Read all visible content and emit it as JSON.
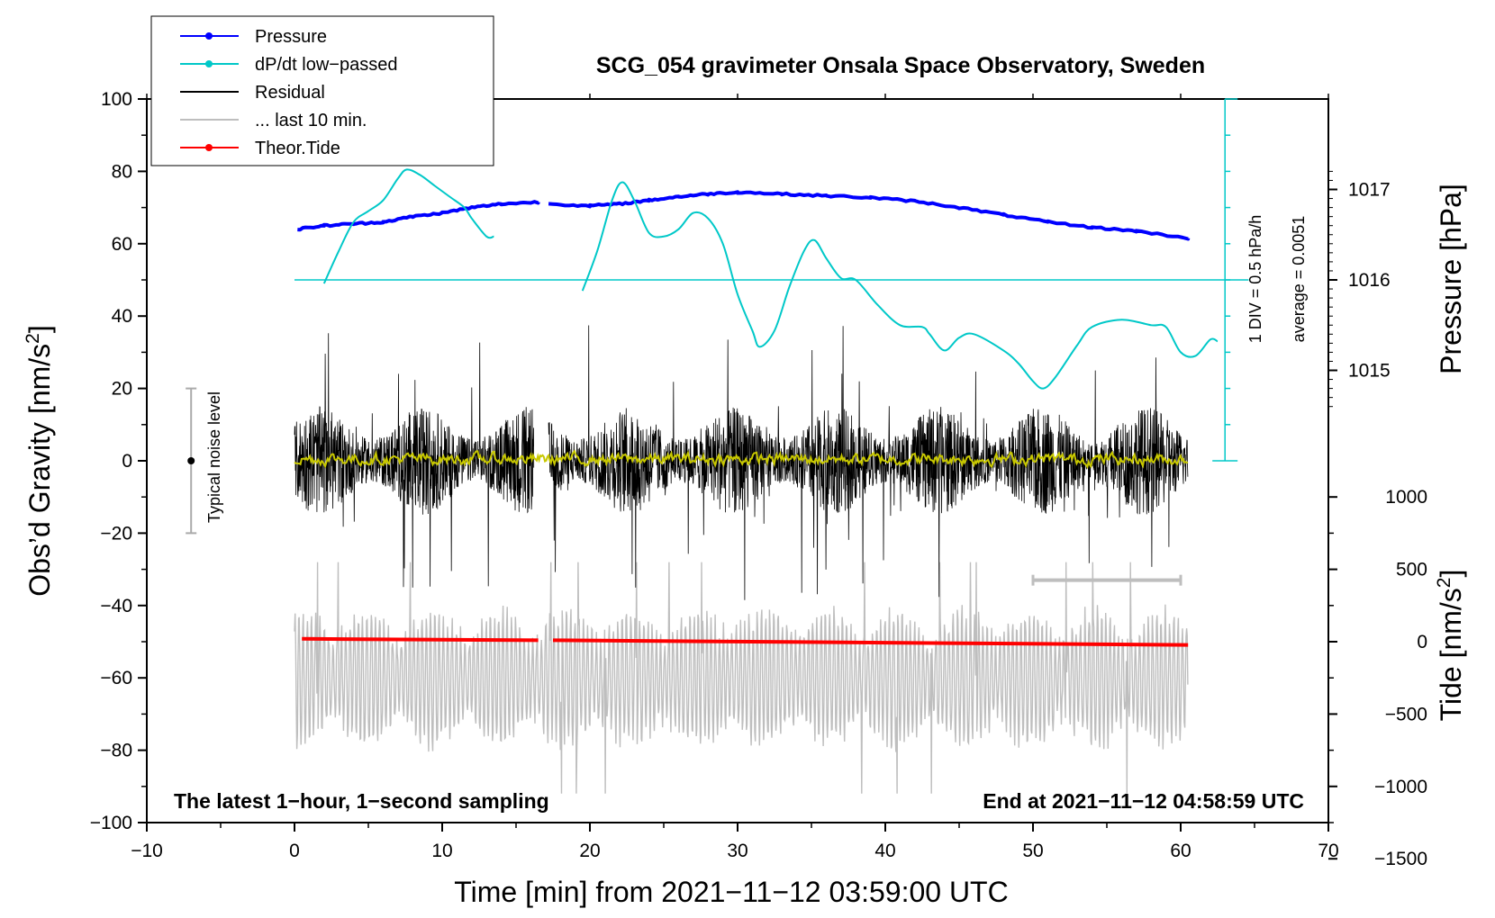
{
  "chart_data": {
    "type": "line",
    "title": "SCG_054 gravimeter Onsala Space Observatory, Sweden",
    "xlabel": "Time [min] from 2021−11−12 03:59:00 UTC",
    "ylabel": "Obs’d Gravity [nm/s",
    "ylabel_sup": "2",
    "ylabel_close": "]",
    "xlim": [
      -10,
      70
    ],
    "ylim": [
      -100,
      100
    ],
    "x_ticks": [
      -10,
      0,
      10,
      20,
      30,
      40,
      50,
      60,
      70
    ],
    "x_tick_labels": [
      "−10",
      "0",
      "10",
      "20",
      "30",
      "40",
      "50",
      "60",
      "70"
    ],
    "y_ticks": [
      -100,
      -80,
      -60,
      -40,
      -20,
      0,
      20,
      40,
      60,
      80,
      100
    ],
    "y_tick_labels": [
      "−100",
      "−80",
      "−60",
      "−40",
      "−20",
      "0",
      "20",
      "40",
      "60",
      "80",
      "100"
    ],
    "pressure_axis": {
      "label": "Pressure [hPa]",
      "ticks": [
        1015,
        1016,
        1017
      ],
      "tick_labels": [
        "1015",
        "1016",
        "1017"
      ],
      "hpa_per_gravity_unit": 0.04,
      "reference_hpa": 1016,
      "reference_gravity": 50
    },
    "tide_axis": {
      "label": "Tide [nm/s",
      "label_sup": "2",
      "label_close": "]",
      "ticks": [
        -1500,
        -1000,
        -500,
        0,
        500,
        1000
      ],
      "tick_labels": [
        "−1500",
        "−1000",
        "−500",
        "0",
        "500",
        "1000"
      ],
      "tide_per_gravity_unit": 25,
      "reference_tide": 0,
      "reference_gravity": -50
    },
    "dpdt_scale": {
      "text_div": "1 DIV = 0.5 hPa/h",
      "text_avg": "average = 0.0051",
      "baseline_gravity": 50,
      "axis_x": 63,
      "axis_top_gravity": 100,
      "axis_bottom_gravity": 0,
      "div_gravity": 10
    },
    "noise_level": {
      "label": "Typical noise level",
      "x": -7,
      "center": 0,
      "low": -20,
      "high": 20
    },
    "last10_marker": {
      "x_start": 50,
      "x_end": 60,
      "gravity": -33
    },
    "note_left": "The latest 1−hour, 1−second sampling",
    "note_right": "End at 2021−11−12 04:58:59 UTC",
    "legend": [
      {
        "label": "Pressure",
        "color": "#0000ff",
        "marker": true
      },
      {
        "label": "dP/dt low−passed",
        "color": "#00c8c8",
        "marker": true
      },
      {
        "label": "Residual",
        "color": "#000000",
        "marker": false
      },
      {
        "label": "... last 10 min.",
        "color": "#bebebe",
        "marker": false
      },
      {
        "label": "Theor.Tide",
        "color": "#ff0000",
        "marker": true
      }
    ],
    "series": [
      {
        "name": "Pressure",
        "color": "#0000ff",
        "unit": "hPa",
        "segments": [
          [
            [
              0.2,
              1016.56
            ],
            [
              2,
              1016.6
            ],
            [
              4,
              1016.62
            ],
            [
              6,
              1016.64
            ],
            [
              8,
              1016.7
            ],
            [
              10,
              1016.74
            ],
            [
              12,
              1016.8
            ],
            [
              14,
              1016.84
            ],
            [
              16.5,
              1016.86
            ]
          ],
          [
            [
              17.2,
              1016.84
            ],
            [
              20,
              1016.82
            ],
            [
              22,
              1016.84
            ],
            [
              24,
              1016.88
            ],
            [
              26,
              1016.92
            ],
            [
              28,
              1016.95
            ],
            [
              30,
              1016.97
            ],
            [
              33,
              1016.95
            ],
            [
              36,
              1016.93
            ],
            [
              39,
              1016.91
            ],
            [
              42,
              1016.87
            ],
            [
              45,
              1016.8
            ],
            [
              48,
              1016.72
            ],
            [
              51,
              1016.64
            ],
            [
              54,
              1016.58
            ],
            [
              57,
              1016.54
            ],
            [
              60.5,
              1016.46
            ]
          ]
        ]
      },
      {
        "name": "dP/dt low-passed",
        "color": "#00c8c8",
        "unit": "nm/s2",
        "segments": [
          [
            [
              2,
              49
            ],
            [
              3,
              58
            ],
            [
              4,
              66
            ],
            [
              5,
              69
            ],
            [
              6,
              72
            ],
            [
              7,
              78
            ],
            [
              7.6,
              80.5
            ],
            [
              8.5,
              79
            ],
            [
              9.5,
              76
            ],
            [
              10.5,
              73
            ],
            [
              11.5,
              70
            ],
            [
              12,
              67
            ],
            [
              13,
              62
            ],
            [
              13.5,
              62
            ]
          ],
          [
            [
              19.5,
              47
            ],
            [
              20.5,
              58
            ],
            [
              21.5,
              72
            ],
            [
              22.2,
              77
            ],
            [
              23,
              72
            ],
            [
              24,
              63
            ],
            [
              25,
              62
            ],
            [
              26,
              64
            ],
            [
              27,
              68.5
            ],
            [
              28,
              67
            ],
            [
              29,
              60
            ],
            [
              30,
              46
            ],
            [
              31,
              36
            ],
            [
              31.5,
              31.5
            ],
            [
              32.5,
              36
            ],
            [
              33.5,
              48
            ],
            [
              34.5,
              58
            ],
            [
              35.2,
              61
            ],
            [
              36,
              56
            ],
            [
              37,
              50.5
            ],
            [
              38,
              50
            ],
            [
              39.5,
              43
            ],
            [
              41,
              37.5
            ],
            [
              42.5,
              37
            ],
            [
              43,
              35
            ],
            [
              44,
              30.5
            ],
            [
              45,
              34
            ],
            [
              46,
              35
            ],
            [
              48,
              30.5
            ],
            [
              49,
              27
            ],
            [
              50,
              22
            ],
            [
              50.7,
              20
            ],
            [
              51.5,
              23
            ],
            [
              53,
              32
            ],
            [
              54,
              37
            ],
            [
              56,
              39
            ],
            [
              58,
              37.5
            ],
            [
              59,
              37
            ],
            [
              60,
              30
            ],
            [
              61,
              29
            ],
            [
              62,
              33.5
            ],
            [
              62.5,
              33
            ]
          ]
        ]
      },
      {
        "name": "Theor.Tide",
        "color": "#ff0000",
        "unit": "nm/s2",
        "segments": [
          [
            [
              0.5,
              -49.2
            ],
            [
              16.5,
              -49.6
            ]
          ],
          [
            [
              17.5,
              -49.6
            ],
            [
              60.5,
              -50.9
            ]
          ]
        ]
      },
      {
        "name": "Residual",
        "color": "#000000",
        "unit": "nm/s2",
        "generated": true,
        "x_range": [
          0,
          60.5
        ],
        "gap": [
          16.2,
          17.2
        ],
        "typical_amplitude": 15,
        "max_amplitude": 43
      },
      {
        "name": "... last 10 min.",
        "color": "#bebebe",
        "unit": "nm/s2",
        "generated": true,
        "x_range": [
          0,
          60.5
        ],
        "center_gravity": -60,
        "typical_amplitude": 18,
        "max_amplitude": 32
      },
      {
        "name": "Residual smoothed",
        "color": "#c8c800",
        "unit": "nm/s2",
        "generated": true,
        "x_range": [
          0,
          60.5
        ],
        "center_gravity": 0.5,
        "typical_amplitude": 1.5
      }
    ]
  }
}
